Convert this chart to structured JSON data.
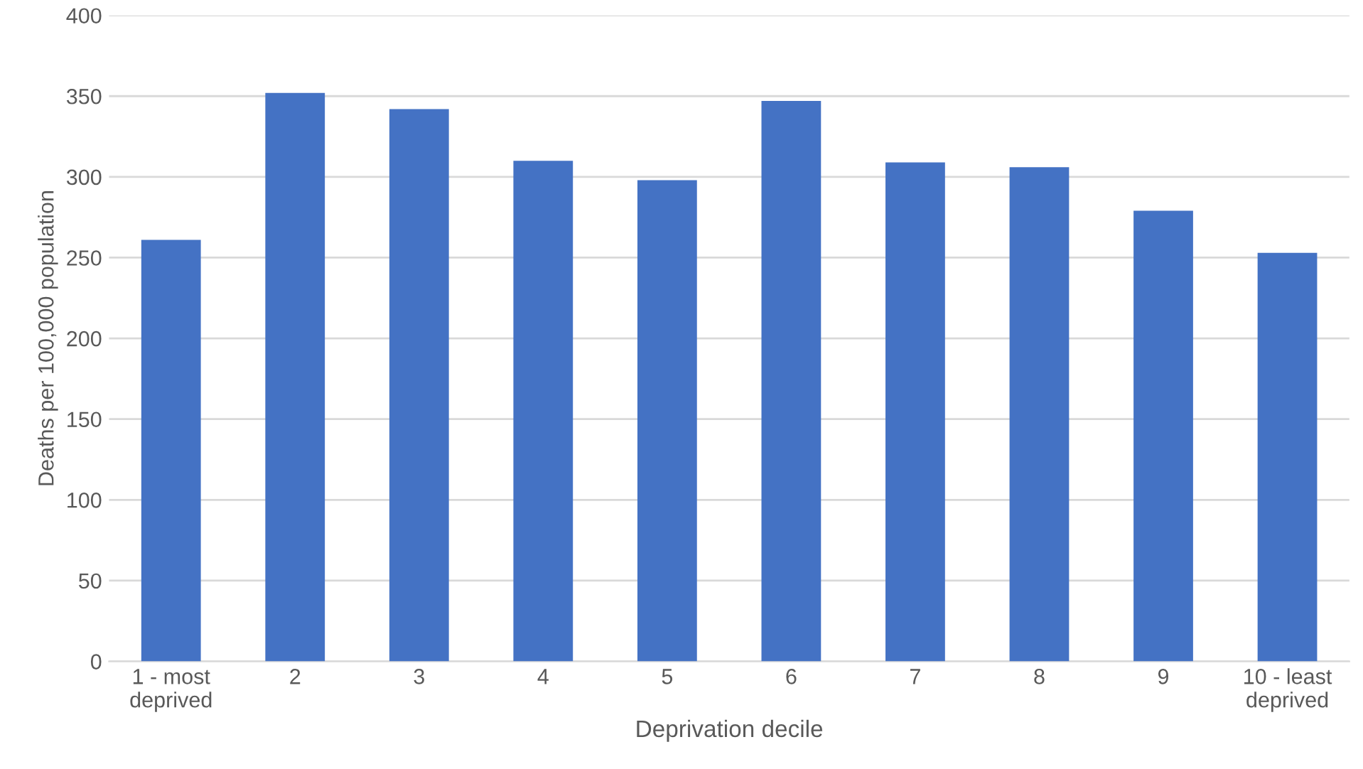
{
  "chart_data": {
    "type": "bar",
    "xlabel": "Deprivation decile",
    "ylabel": "Deaths per 100,000 population",
    "categories": [
      "1 - most\ndeprived",
      "2",
      "3",
      "4",
      "5",
      "6",
      "7",
      "8",
      "9",
      "10 - least\ndeprived"
    ],
    "values": [
      261,
      352,
      342,
      310,
      298,
      347,
      309,
      306,
      279,
      253
    ],
    "color": "#4472c4",
    "ylim": [
      0,
      400
    ],
    "yticks": [
      0,
      50,
      100,
      150,
      200,
      250,
      300,
      350,
      400
    ],
    "grid": "y"
  }
}
